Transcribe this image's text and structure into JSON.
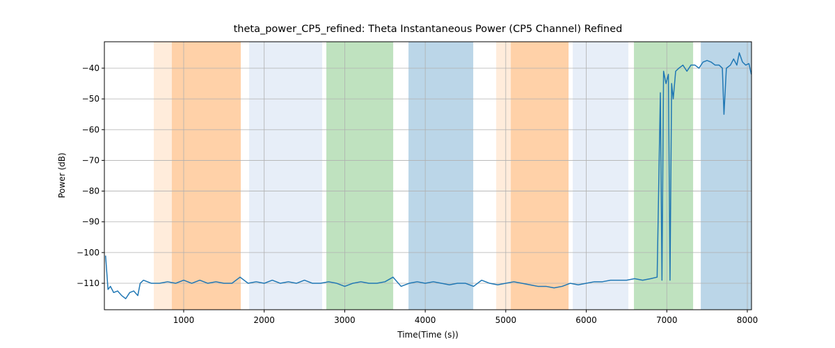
{
  "chart_data": {
    "type": "line",
    "title": "theta_power_CP5_refined: Theta Instantaneous Power (CP5 Channel) Refined",
    "xlabel": "Time(Time (s))",
    "ylabel": "Power (dB)",
    "xlim": [
      15,
      8052
    ],
    "ylim": [
      -118.6,
      -31.4
    ],
    "xticks": [
      1000,
      2000,
      3000,
      4000,
      5000,
      6000,
      7000,
      8000
    ],
    "yticks": [
      {
        "value": -110,
        "label": "−110"
      },
      {
        "value": -100,
        "label": "−100"
      },
      {
        "value": -90,
        "label": "−90"
      },
      {
        "value": -80,
        "label": "−80"
      },
      {
        "value": -70,
        "label": "−70"
      },
      {
        "value": -60,
        "label": "−60"
      },
      {
        "value": -50,
        "label": "−50"
      },
      {
        "value": -40,
        "label": "−40"
      }
    ],
    "grid": true,
    "spans": [
      {
        "start": 629,
        "end": 1709,
        "color": "#ff7f0e",
        "alpha": 0.15
      },
      {
        "start": 853,
        "end": 1709,
        "color": "#ff7f0e",
        "alpha": 0.25
      },
      {
        "start": 1813,
        "end": 2720,
        "color": "#aec7e8",
        "alpha": 0.3
      },
      {
        "start": 2772,
        "end": 3602,
        "color": "#2ca02c",
        "alpha": 0.3
      },
      {
        "start": 3792,
        "end": 4596,
        "color": "#1f77b4",
        "alpha": 0.3
      },
      {
        "start": 4881,
        "end": 5780,
        "color": "#ff7f0e",
        "alpha": 0.15
      },
      {
        "start": 5063,
        "end": 5780,
        "color": "#ff7f0e",
        "alpha": 0.25
      },
      {
        "start": 5832,
        "end": 6523,
        "color": "#aec7e8",
        "alpha": 0.3
      },
      {
        "start": 6592,
        "end": 7327,
        "color": "#2ca02c",
        "alpha": 0.3
      },
      {
        "start": 7422,
        "end": 8052,
        "color": "#1f77b4",
        "alpha": 0.3
      }
    ],
    "x": [
      30,
      60,
      90,
      130,
      180,
      230,
      280,
      330,
      380,
      430,
      460,
      500,
      600,
      700,
      800,
      900,
      1000,
      1100,
      1200,
      1300,
      1400,
      1500,
      1600,
      1700,
      1800,
      1900,
      2000,
      2100,
      2200,
      2300,
      2400,
      2500,
      2600,
      2700,
      2800,
      2900,
      3000,
      3100,
      3200,
      3300,
      3400,
      3500,
      3600,
      3700,
      3800,
      3900,
      4000,
      4100,
      4200,
      4300,
      4400,
      4500,
      4600,
      4700,
      4800,
      4900,
      5000,
      5100,
      5200,
      5300,
      5400,
      5500,
      5600,
      5700,
      5800,
      5900,
      6000,
      6100,
      6200,
      6300,
      6400,
      6500,
      6600,
      6700,
      6800,
      6880,
      6920,
      6940,
      6960,
      6990,
      7020,
      7040,
      7060,
      7080,
      7110,
      7150,
      7200,
      7250,
      7300,
      7350,
      7400,
      7450,
      7500,
      7550,
      7600,
      7650,
      7690,
      7710,
      7740,
      7790,
      7830,
      7870,
      7900,
      7940,
      7980,
      8020,
      8050
    ],
    "series": [
      {
        "color": "#1f77b4",
        "values": [
          -101,
          -112,
          -111,
          -113,
          -112.5,
          -114,
          -115,
          -113,
          -112.5,
          -114,
          -110,
          -109,
          -110,
          -110,
          -109.5,
          -110,
          -109,
          -110,
          -109,
          -110,
          -109.5,
          -110,
          -110,
          -108,
          -110,
          -109.5,
          -110,
          -109,
          -110,
          -109.5,
          -110,
          -109,
          -110,
          -110,
          -109.5,
          -110,
          -111,
          -110,
          -109.5,
          -110,
          -110,
          -109.5,
          -108,
          -111,
          -110,
          -109.5,
          -110,
          -109.5,
          -110,
          -110.5,
          -110,
          -110,
          -111,
          -109,
          -110,
          -110.5,
          -110,
          -109.5,
          -110,
          -110.5,
          -111,
          -111,
          -111.5,
          -111,
          -110,
          -110.5,
          -110,
          -109.5,
          -109.5,
          -109,
          -109,
          -109,
          -108.5,
          -109,
          -108.5,
          -108,
          -48,
          -109,
          -41,
          -45,
          -42,
          -109,
          -45,
          -50,
          -41,
          -40,
          -39,
          -41,
          -39,
          -39,
          -40,
          -38,
          -37.5,
          -38,
          -39,
          -39,
          -40,
          -55,
          -40,
          -39,
          -37,
          -39,
          -35,
          -38,
          -39,
          -38.5,
          -42
        ]
      }
    ]
  }
}
